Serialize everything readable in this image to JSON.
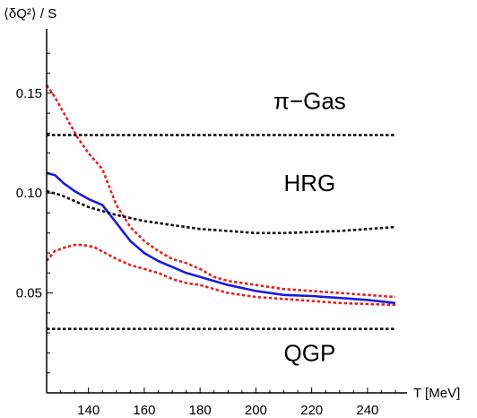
{
  "chart_data": {
    "type": "line",
    "ylabel": "⟨δQ²⟩ / S",
    "xlabel": "T [MeV]",
    "xlim": [
      125,
      250
    ],
    "ylim": [
      0,
      0.18
    ],
    "x_ticks": [
      140,
      160,
      180,
      200,
      220,
      240
    ],
    "y_ticks": [
      0.05,
      0.1,
      0.15
    ],
    "y_tick_labels": [
      "0.05",
      "0.10",
      "0.15"
    ],
    "grid": false,
    "annotations": [
      {
        "text": "π−Gas",
        "x": 200,
        "y": 0.142
      },
      {
        "text": "HRG",
        "x": 200,
        "y": 0.101
      },
      {
        "text": "QGP",
        "x": 200,
        "y": 0.016
      }
    ],
    "colors": {
      "central": "#1a1adf",
      "band": "#e8201f",
      "reference": "#111111"
    },
    "series": [
      {
        "role": "central",
        "color": "#1a1adf",
        "style": "solid",
        "x": [
          125,
          128,
          131,
          135,
          140,
          145,
          150,
          155,
          160,
          165,
          170,
          175,
          180,
          185,
          190,
          200,
          210,
          220,
          230,
          240,
          250
        ],
        "y": [
          0.11,
          0.109,
          0.105,
          0.101,
          0.097,
          0.094,
          0.085,
          0.076,
          0.07,
          0.066,
          0.063,
          0.06,
          0.058,
          0.056,
          0.054,
          0.051,
          0.049,
          0.0485,
          0.0475,
          0.0465,
          0.045
        ]
      },
      {
        "role": "band-upper",
        "color": "#e8201f",
        "style": "dotted",
        "x": [
          125,
          128,
          132,
          136,
          140,
          145,
          150,
          155,
          160,
          165,
          170,
          175,
          180,
          185,
          190,
          200,
          210,
          220,
          230,
          240,
          250
        ],
        "y": [
          0.154,
          0.148,
          0.138,
          0.128,
          0.12,
          0.112,
          0.094,
          0.083,
          0.076,
          0.071,
          0.067,
          0.065,
          0.062,
          0.058,
          0.056,
          0.054,
          0.052,
          0.051,
          0.05,
          0.049,
          0.048
        ]
      },
      {
        "role": "band-lower",
        "color": "#e8201f",
        "style": "dotted",
        "x": [
          125,
          128,
          132,
          135,
          138,
          142,
          146,
          150,
          155,
          160,
          165,
          170,
          175,
          180,
          185,
          190,
          200,
          210,
          220,
          230,
          240,
          250
        ],
        "y": [
          0.066,
          0.071,
          0.073,
          0.074,
          0.074,
          0.073,
          0.07,
          0.067,
          0.064,
          0.062,
          0.06,
          0.057,
          0.055,
          0.054,
          0.052,
          0.05,
          0.048,
          0.047,
          0.046,
          0.045,
          0.0445,
          0.044
        ]
      },
      {
        "role": "reference-pion-gas",
        "color": "#111111",
        "style": "dotted",
        "x": [
          125,
          250
        ],
        "y": [
          0.129,
          0.129
        ]
      },
      {
        "role": "reference-hrg",
        "color": "#111111",
        "style": "dotted",
        "x": [
          125,
          130,
          135,
          140,
          145,
          150,
          160,
          170,
          180,
          190,
          200,
          210,
          220,
          230,
          240,
          250
        ],
        "y": [
          0.101,
          0.099,
          0.096,
          0.093,
          0.091,
          0.089,
          0.086,
          0.084,
          0.082,
          0.081,
          0.08,
          0.08,
          0.0805,
          0.081,
          0.082,
          0.083
        ]
      },
      {
        "role": "reference-qgp",
        "color": "#111111",
        "style": "dotted",
        "x": [
          125,
          250
        ],
        "y": [
          0.032,
          0.032
        ]
      }
    ]
  }
}
